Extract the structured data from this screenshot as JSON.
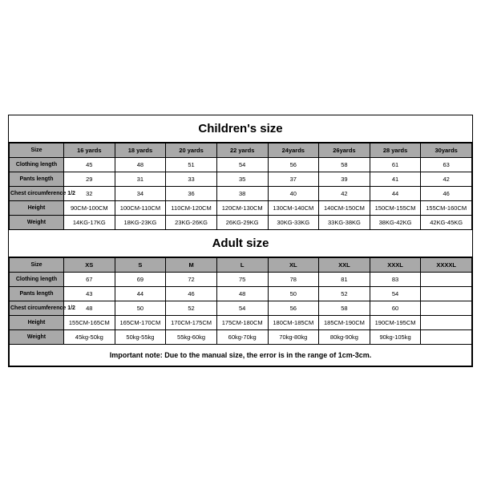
{
  "children": {
    "title": "Children's size",
    "columns": [
      "Size",
      "16 yards",
      "18 yards",
      "20 yards",
      "22 yards",
      "24yards",
      "26yards",
      "28 yards",
      "30yards"
    ],
    "rows": [
      {
        "label": "Clothing length",
        "values": [
          "45",
          "48",
          "51",
          "54",
          "56",
          "58",
          "61",
          "63"
        ]
      },
      {
        "label": "Pants length",
        "values": [
          "29",
          "31",
          "33",
          "35",
          "37",
          "39",
          "41",
          "42"
        ]
      },
      {
        "label": "Chest circumference 1/2",
        "values": [
          "32",
          "34",
          "36",
          "38",
          "40",
          "42",
          "44",
          "46"
        ]
      },
      {
        "label": "Height",
        "values": [
          "90CM-100CM",
          "100CM-110CM",
          "110CM-120CM",
          "120CM-130CM",
          "130CM-140CM",
          "140CM-150CM",
          "150CM-155CM",
          "155CM-160CM"
        ]
      },
      {
        "label": "Weight",
        "values": [
          "14KG-17KG",
          "18KG-23KG",
          "23KG-26KG",
          "26KG-29KG",
          "30KG-33KG",
          "33KG-38KG",
          "38KG-42KG",
          "42KG-45KG"
        ]
      }
    ]
  },
  "adult": {
    "title": "Adult size",
    "columns": [
      "Size",
      "XS",
      "S",
      "M",
      "L",
      "XL",
      "XXL",
      "XXXL",
      "XXXXL"
    ],
    "rows": [
      {
        "label": "Clothing length",
        "values": [
          "67",
          "69",
          "72",
          "75",
          "78",
          "81",
          "83",
          ""
        ]
      },
      {
        "label": "Pants length",
        "values": [
          "43",
          "44",
          "46",
          "48",
          "50",
          "52",
          "54",
          ""
        ]
      },
      {
        "label": "Chest circumference 1/2",
        "values": [
          "48",
          "50",
          "52",
          "54",
          "56",
          "58",
          "60",
          ""
        ]
      },
      {
        "label": "Height",
        "values": [
          "155CM-165CM",
          "165CM-170CM",
          "170CM-175CM",
          "175CM-180CM",
          "180CM-185CM",
          "185CM-190CM",
          "190CM-195CM",
          ""
        ]
      },
      {
        "label": "Weight",
        "values": [
          "45kg-50kg",
          "50kg-55kg",
          "55kg-60kg",
          "60kg-70kg",
          "70kg-80kg",
          "80kg-90kg",
          "90kg-105kg",
          ""
        ]
      }
    ]
  },
  "note": "Important note: Due to the manual size, the error is in the range of 1cm-3cm.",
  "style": {
    "header_bg": "#a9a9a9",
    "cell_bg": "#ffffff",
    "border_color": "#000000",
    "title_fontsize": 15,
    "cell_fontsize": 7.5,
    "note_fontsize": 9
  }
}
